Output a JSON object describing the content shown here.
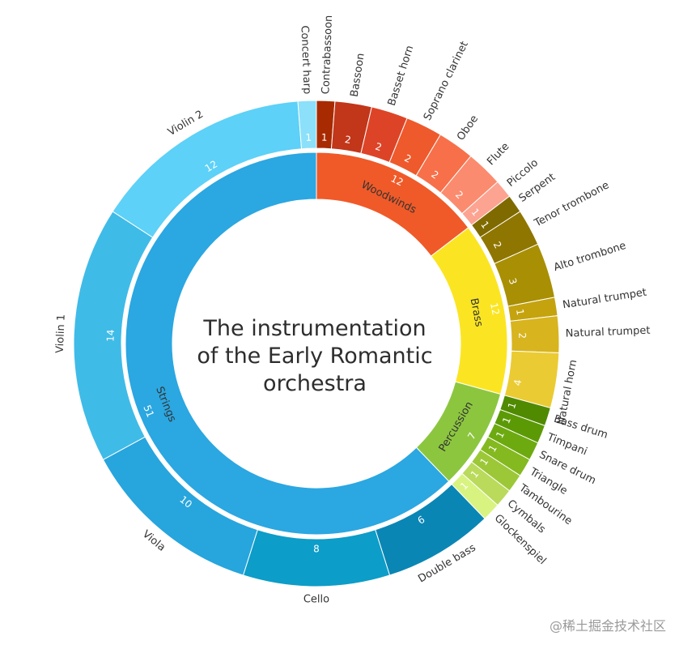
{
  "chart_data": {
    "type": "sunburst",
    "title": "The instrumentation of the Early Romantic orchestra",
    "title_lines": [
      "The instrumentation",
      "of the Early Romantic",
      "orchestra"
    ],
    "groups": [
      {
        "name": "Woodwinds",
        "value": 12,
        "color": "#f05a28",
        "items": [
          {
            "name": "Contrabassoon",
            "value": 1,
            "color": "#a82a00"
          },
          {
            "name": "Bassoon",
            "value": 2,
            "color": "#c2361a"
          },
          {
            "name": "Basset horn",
            "value": 2,
            "color": "#dd4427"
          },
          {
            "name": "Soprano clarinet",
            "value": 2,
            "color": "#ee5a2c"
          },
          {
            "name": "Oboe",
            "value": 2,
            "color": "#f7704a"
          },
          {
            "name": "Flute",
            "value": 2,
            "color": "#fb8b6e"
          },
          {
            "name": "Piccolo",
            "value": 1,
            "color": "#fda391"
          }
        ]
      },
      {
        "name": "Brass",
        "value": 12,
        "color": "#fbe522",
        "items": [
          {
            "name": "Serpent",
            "value": 1,
            "color": "#7f6a00"
          },
          {
            "name": "Tenor trombone",
            "value": 2,
            "color": "#8f7600"
          },
          {
            "name": "Alto trombone",
            "value": 3,
            "color": "#a98f04"
          },
          {
            "name": "Natural trumpet",
            "value": 1,
            "color": "#c4a30f"
          },
          {
            "name": "Natural trumpet",
            "value": 2,
            "color": "#d8b41e"
          },
          {
            "name": "Natural horn",
            "value": 4,
            "color": "#ebcb33"
          }
        ]
      },
      {
        "name": "Percussion",
        "value": 7,
        "color": "#8cc63f",
        "items": [
          {
            "name": "Bass drum",
            "value": 1,
            "color": "#4f8a00"
          },
          {
            "name": "Timpani",
            "value": 1,
            "color": "#5c9a05"
          },
          {
            "name": "Snare drum",
            "value": 1,
            "color": "#6daa10"
          },
          {
            "name": "Triangle",
            "value": 1,
            "color": "#84b91f"
          },
          {
            "name": "Tambourine",
            "value": 1,
            "color": "#9cc838"
          },
          {
            "name": "Cymbals",
            "value": 1,
            "color": "#bada5c"
          },
          {
            "name": "Glockenspiel",
            "value": 1,
            "color": "#d8f380"
          }
        ]
      },
      {
        "name": "Strings",
        "value": 51,
        "color": "#2ba7e1",
        "items": [
          {
            "name": "Double bass",
            "value": 6,
            "color": "#0a86b5"
          },
          {
            "name": "Cello",
            "value": 8,
            "color": "#0c9dc8"
          },
          {
            "name": "Viola",
            "value": 10,
            "color": "#27a5dd"
          },
          {
            "name": "Violin 1",
            "value": 14,
            "color": "#3fbbe8"
          },
          {
            "name": "Violin 2",
            "value": 12,
            "color": "#5dd1f7"
          },
          {
            "name": "Concert harp",
            "value": 1,
            "color": "#8ce0fa"
          }
        ]
      }
    ]
  },
  "watermark": "@稀土掘金技术社区"
}
